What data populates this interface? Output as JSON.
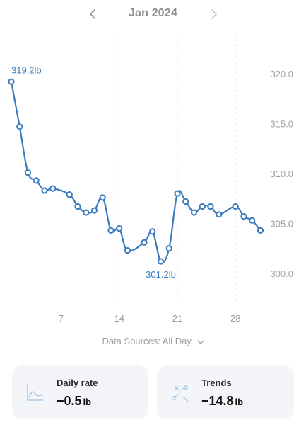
{
  "header": {
    "month_label": "Jan 2024"
  },
  "chart_data": {
    "type": "line",
    "x": [
      1,
      2,
      3,
      4,
      5,
      6,
      8,
      9,
      10,
      11,
      12,
      13,
      14,
      15,
      17,
      18,
      19,
      20,
      21,
      22,
      23,
      24,
      25,
      26,
      28,
      29,
      30,
      31
    ],
    "y": [
      319.2,
      314.7,
      310.1,
      309.3,
      308.3,
      308.5,
      307.9,
      306.7,
      306.1,
      306.3,
      307.6,
      304.3,
      304.5,
      302.3,
      303.1,
      304.2,
      301.2,
      302.5,
      308.0,
      307.2,
      306.1,
      306.7,
      306.7,
      305.9,
      306.7,
      305.7,
      305.3,
      304.3
    ],
    "x_ticks": [
      "7",
      "14",
      "21",
      "28"
    ],
    "x_tick_values": [
      7,
      14,
      21,
      28
    ],
    "y_ticks": [
      "320.0",
      "315.0",
      "310.0",
      "305.0",
      "300.0"
    ],
    "y_tick_values": [
      320,
      315,
      310,
      305,
      300
    ],
    "xlim": [
      1,
      31
    ],
    "ylim": [
      300,
      320
    ],
    "max_label": "319.2lb",
    "min_label": "301.2lb",
    "grid": "vertical dashed",
    "line_color": "#3d7bbf"
  },
  "source": {
    "label": "Data Sources: All Day"
  },
  "cards": {
    "daily_rate": {
      "label": "Daily rate",
      "value": "−0.5",
      "unit": "lb",
      "icon": "chart-line-icon"
    },
    "trends": {
      "label": "Trends",
      "value": "−14.8",
      "unit": "lb",
      "icon": "trend-path-icon"
    }
  },
  "colors": {
    "accent": "#3d7bbf",
    "muted_text": "#8c8c8c",
    "card_bg": "#f3f5f8",
    "icon_tint": "#9cc3e6"
  }
}
